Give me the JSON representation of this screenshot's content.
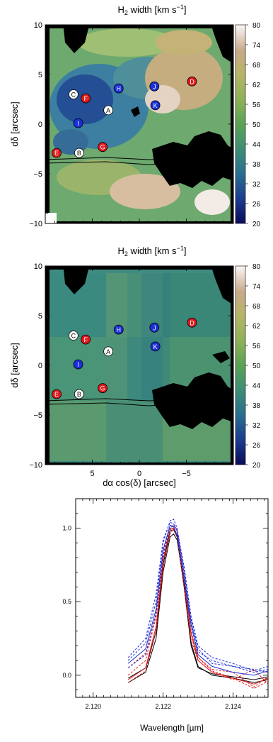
{
  "panels": [
    {
      "title_main": "H",
      "title_sub": "2",
      "title_rest": " width [km s",
      "title_sup": "−1",
      "title_end": "]",
      "ylabel": "dδ [arcsec]",
      "yticks": [
        "10",
        "5",
        "0",
        "−5",
        "−10"
      ],
      "xticks": [],
      "colorbar_ticks": [
        "80",
        "74",
        "68",
        "62",
        "56",
        "50",
        "44",
        "38",
        "32",
        "26",
        "20"
      ],
      "markers": [
        {
          "label": "C",
          "color": "white"
        },
        {
          "label": "F",
          "color": "red"
        },
        {
          "label": "H",
          "color": "blue"
        },
        {
          "label": "J",
          "color": "blue"
        },
        {
          "label": "D",
          "color": "red"
        },
        {
          "label": "A",
          "color": "white"
        },
        {
          "label": "K",
          "color": "blue"
        },
        {
          "label": "I",
          "color": "blue"
        },
        {
          "label": "G",
          "color": "red"
        },
        {
          "label": "E",
          "color": "red"
        },
        {
          "label": "B",
          "color": "white"
        }
      ]
    },
    {
      "title_main": "H",
      "title_sub": "2",
      "title_rest": " width [km s",
      "title_sup": "−1",
      "title_end": "]",
      "ylabel": "dδ [arcsec]",
      "yticks": [
        "10",
        "5",
        "0",
        "−5",
        "−10"
      ],
      "xticks": [
        "5",
        "0",
        "−5"
      ],
      "xlabel": "dα cos(δ) [arcsec]",
      "colorbar_ticks": [
        "80",
        "74",
        "68",
        "62",
        "56",
        "50",
        "44",
        "38",
        "32",
        "26",
        "20"
      ],
      "markers": [
        {
          "label": "C",
          "color": "white"
        },
        {
          "label": "F",
          "color": "red"
        },
        {
          "label": "H",
          "color": "blue"
        },
        {
          "label": "J",
          "color": "blue"
        },
        {
          "label": "D",
          "color": "red"
        },
        {
          "label": "A",
          "color": "white"
        },
        {
          "label": "K",
          "color": "blue"
        },
        {
          "label": "I",
          "color": "blue"
        },
        {
          "label": "G",
          "color": "red"
        },
        {
          "label": "E",
          "color": "red"
        },
        {
          "label": "B",
          "color": "white"
        }
      ]
    }
  ],
  "colors": {
    "red_marker": "#e0181c",
    "blue_marker": "#1a2fd6",
    "white_marker": "#ffffff",
    "map_black": "#000000"
  },
  "chart_data": [
    {
      "type": "heatmap",
      "title": "H2 width [km s−1]",
      "ylabel": "dδ [arcsec]",
      "xlim": [
        10,
        -10
      ],
      "ylim": [
        -10,
        10
      ],
      "colorbar_range": [
        20,
        80
      ],
      "colormap": "gist_earth",
      "points": [
        {
          "label": "C",
          "x": 7.0,
          "y": 3.0,
          "color": "white"
        },
        {
          "label": "F",
          "x": 5.7,
          "y": 2.6,
          "color": "red"
        },
        {
          "label": "H",
          "x": 2.2,
          "y": 3.6,
          "color": "blue"
        },
        {
          "label": "J",
          "x": -1.6,
          "y": 3.8,
          "color": "blue"
        },
        {
          "label": "D",
          "x": -5.6,
          "y": 4.3,
          "color": "red"
        },
        {
          "label": "A",
          "x": 3.3,
          "y": 1.4,
          "color": "white"
        },
        {
          "label": "K",
          "x": -1.7,
          "y": 1.9,
          "color": "blue"
        },
        {
          "label": "I",
          "x": 6.5,
          "y": 0.1,
          "color": "blue"
        },
        {
          "label": "G",
          "x": 3.9,
          "y": -2.3,
          "color": "red"
        },
        {
          "label": "E",
          "x": 8.8,
          "y": -2.9,
          "color": "red"
        },
        {
          "label": "B",
          "x": 6.4,
          "y": -2.9,
          "color": "white"
        }
      ]
    },
    {
      "type": "heatmap",
      "title": "H2 width [km s−1]",
      "ylabel": "dδ [arcsec]",
      "xlabel": "dα cos(δ) [arcsec]",
      "xlim": [
        10,
        -10
      ],
      "ylim": [
        -10,
        10
      ],
      "colorbar_range": [
        20,
        80
      ],
      "colormap": "gist_earth",
      "points": [
        {
          "label": "C",
          "x": 7.0,
          "y": 3.0,
          "color": "white"
        },
        {
          "label": "F",
          "x": 5.7,
          "y": 2.6,
          "color": "red"
        },
        {
          "label": "H",
          "x": 2.2,
          "y": 3.6,
          "color": "blue"
        },
        {
          "label": "J",
          "x": -1.6,
          "y": 3.8,
          "color": "blue"
        },
        {
          "label": "D",
          "x": -5.6,
          "y": 4.3,
          "color": "red"
        },
        {
          "label": "A",
          "x": 3.3,
          "y": 1.4,
          "color": "white"
        },
        {
          "label": "K",
          "x": -1.7,
          "y": 1.9,
          "color": "blue"
        },
        {
          "label": "I",
          "x": 6.5,
          "y": 0.1,
          "color": "blue"
        },
        {
          "label": "G",
          "x": 3.9,
          "y": -2.3,
          "color": "red"
        },
        {
          "label": "E",
          "x": 8.8,
          "y": -2.9,
          "color": "red"
        },
        {
          "label": "B",
          "x": 6.4,
          "y": -2.9,
          "color": "white"
        }
      ]
    },
    {
      "type": "line",
      "xlabel": "Wavelength [µm]",
      "xlim": [
        2.1195,
        2.125
      ],
      "ylim": [
        -0.15,
        1.2
      ],
      "xticks": [
        "2.120",
        "2.122",
        "2.124"
      ],
      "yticks": [
        "0.0",
        "0.5",
        "1.0"
      ],
      "x": [
        2.121,
        2.1215,
        2.1218,
        2.122,
        2.1222,
        2.1223,
        2.1224,
        2.1226,
        2.1228,
        2.123,
        2.1234,
        2.124,
        2.1246,
        2.125
      ],
      "series": [
        {
          "color": "#000000",
          "dash": false,
          "values": [
            -0.05,
            0.02,
            0.25,
            0.7,
            0.94,
            0.96,
            0.92,
            0.62,
            0.22,
            0.06,
            0.0,
            -0.02,
            -0.05,
            -0.03
          ]
        },
        {
          "color": "#000000",
          "dash": false,
          "values": [
            -0.02,
            0.05,
            0.3,
            0.75,
            0.98,
            0.99,
            0.94,
            0.6,
            0.2,
            0.05,
            0.01,
            -0.01,
            -0.03,
            -0.01
          ]
        },
        {
          "color": "#e0181c",
          "dash": false,
          "values": [
            -0.03,
            0.05,
            0.33,
            0.78,
            0.99,
            1.0,
            0.95,
            0.65,
            0.28,
            0.1,
            0.02,
            -0.02,
            -0.06,
            -0.02
          ]
        },
        {
          "color": "#e0181c",
          "dash": true,
          "values": [
            -0.05,
            0.03,
            0.3,
            0.72,
            0.96,
            1.0,
            0.96,
            0.68,
            0.3,
            0.12,
            0.03,
            -0.02,
            -0.09,
            -0.04
          ]
        },
        {
          "color": "#e0181c",
          "dash": true,
          "values": [
            0.0,
            0.1,
            0.4,
            0.8,
            0.99,
            1.02,
            0.98,
            0.66,
            0.28,
            0.12,
            0.04,
            0.02,
            -0.08,
            -0.01
          ]
        },
        {
          "color": "#e0181c",
          "dash": true,
          "values": [
            0.05,
            0.15,
            0.42,
            0.84,
            1.0,
            1.0,
            0.94,
            0.6,
            0.24,
            0.1,
            0.02,
            -0.03,
            0.04,
            -0.06
          ]
        },
        {
          "color": "#1a2fd6",
          "dash": false,
          "values": [
            0.08,
            0.18,
            0.45,
            0.85,
            1.02,
            1.01,
            0.95,
            0.66,
            0.34,
            0.14,
            0.06,
            0.02,
            0.0,
            0.03
          ]
        },
        {
          "color": "#1a2fd6",
          "dash": true,
          "values": [
            0.1,
            0.22,
            0.5,
            0.9,
            1.05,
            1.06,
            1.0,
            0.72,
            0.38,
            0.18,
            0.08,
            0.06,
            0.02,
            0.04
          ]
        },
        {
          "color": "#1a2fd6",
          "dash": true,
          "values": [
            0.12,
            0.25,
            0.55,
            0.92,
            1.04,
            1.03,
            0.98,
            0.7,
            0.36,
            0.16,
            0.1,
            0.06,
            0.04,
            0.02
          ]
        },
        {
          "color": "#1a2fd6",
          "dash": true,
          "values": [
            0.05,
            0.14,
            0.42,
            0.82,
            1.0,
            1.02,
            0.99,
            0.74,
            0.4,
            0.2,
            0.12,
            0.08,
            0.03,
            0.06
          ]
        }
      ]
    }
  ]
}
